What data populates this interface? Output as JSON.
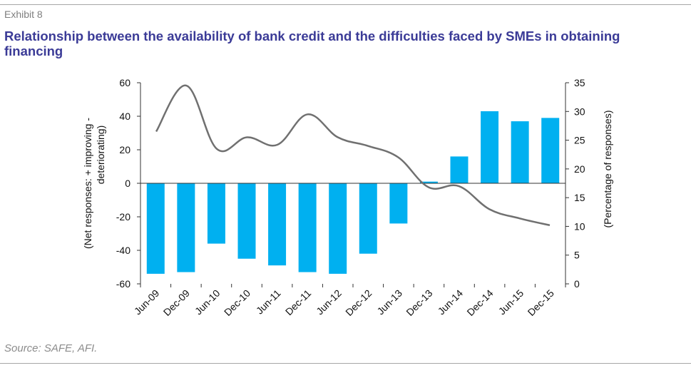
{
  "exhibit_label": "Exhibit 8",
  "title": "Relationship between the availability of bank credit and the difficulties faced by SMEs in obtaining financing",
  "source": "Source: SAFE, AFI.",
  "chart_data": {
    "type": "bar+line",
    "categories": [
      "Jun-09",
      "Dec-09",
      "Jun-10",
      "Dec-10",
      "Jun-11",
      "Dec-11",
      "Jun-12",
      "Dec-12",
      "Jun-13",
      "Dec-13",
      "Jun-14",
      "Dec-14",
      "Jun-15",
      "Dec-15"
    ],
    "series": [
      {
        "type": "bar",
        "axis": "left",
        "color": "#00b0f0",
        "values": [
          -54,
          -53,
          -36,
          -45,
          -49,
          -53,
          -54,
          -42,
          -24,
          1,
          16,
          43,
          37,
          39
        ]
      },
      {
        "type": "line",
        "axis": "right",
        "color": "#707070",
        "values": [
          26.5,
          34.5,
          23.5,
          25.5,
          24.2,
          29.5,
          25.5,
          24.0,
          22.0,
          16.8,
          17.0,
          13.0,
          11.4,
          10.2
        ]
      }
    ],
    "y_left": {
      "label": "(Net responses: + improving - deteriorating)",
      "lim": [
        -60,
        60
      ],
      "ticks": [
        60,
        40,
        20,
        0,
        -20,
        -40,
        -60
      ]
    },
    "y_right": {
      "label": "(Percentage of responses)",
      "lim": [
        0,
        35
      ],
      "ticks": [
        35,
        30,
        25,
        20,
        15,
        10,
        5,
        0
      ]
    },
    "grid": false,
    "legend": "none"
  }
}
